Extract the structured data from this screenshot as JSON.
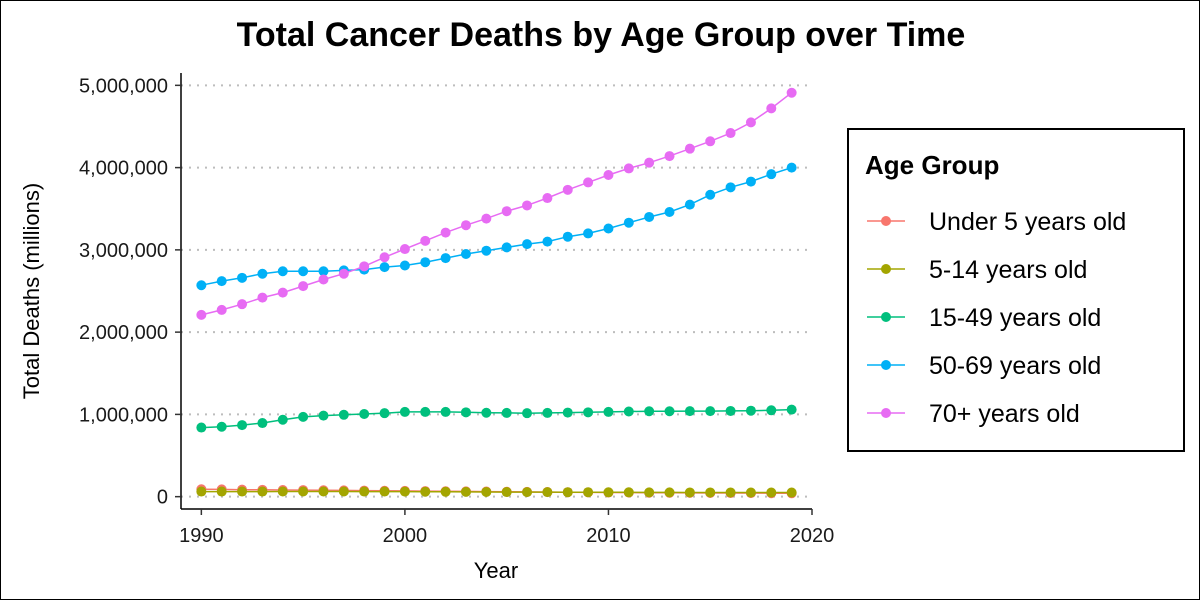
{
  "chart_data": {
    "type": "line",
    "title": "Total Cancer Deaths by Age Group over Time",
    "xlabel": "Year",
    "ylabel": "Total Deaths (millions)",
    "xlim": [
      1989,
      2020
    ],
    "ylim": [
      -150000,
      5150000
    ],
    "x_ticks": [
      1990,
      2000,
      2010,
      2020
    ],
    "x_tick_labels": [
      "1990",
      "2000",
      "2010",
      "2020"
    ],
    "y_ticks": [
      0,
      1000000,
      2000000,
      3000000,
      4000000,
      5000000
    ],
    "y_tick_labels": [
      "0",
      "1,000,000",
      "2,000,000",
      "3,000,000",
      "4,000,000",
      "5,000,000"
    ],
    "grid": "horizontal dotted",
    "legend": {
      "title": "Age Group",
      "position": "right"
    },
    "x": [
      1990,
      1991,
      1992,
      1993,
      1994,
      1995,
      1996,
      1997,
      1998,
      1999,
      2000,
      2001,
      2002,
      2003,
      2004,
      2005,
      2006,
      2007,
      2008,
      2009,
      2010,
      2011,
      2012,
      2013,
      2014,
      2015,
      2016,
      2017,
      2018,
      2019
    ],
    "series": [
      {
        "name": "Under 5 years old",
        "color": "#F8766D",
        "values": [
          90000,
          88000,
          85000,
          83000,
          81000,
          80000,
          78000,
          76000,
          74000,
          72000,
          70000,
          68000,
          66000,
          64000,
          62000,
          60000,
          58000,
          56000,
          54000,
          52000,
          50000,
          49000,
          48000,
          47000,
          46000,
          45000,
          44000,
          43000,
          42000,
          41000
        ]
      },
      {
        "name": "5-14 years old",
        "color": "#A3A500",
        "values": [
          62000,
          62000,
          62000,
          62000,
          63000,
          63000,
          63000,
          63000,
          62000,
          62000,
          61000,
          60000,
          59000,
          58000,
          57000,
          56000,
          55000,
          55000,
          54000,
          54000,
          53000,
          53000,
          52000,
          52000,
          51000,
          51000,
          51000,
          50000,
          50000,
          50000
        ]
      },
      {
        "name": "15-49 years old",
        "color": "#00BF7D",
        "values": [
          840000,
          850000,
          870000,
          895000,
          935000,
          970000,
          985000,
          995000,
          1005000,
          1015000,
          1030000,
          1030000,
          1030000,
          1025000,
          1020000,
          1018000,
          1015000,
          1018000,
          1022000,
          1025000,
          1030000,
          1035000,
          1038000,
          1038000,
          1040000,
          1040000,
          1042000,
          1045000,
          1050000,
          1058000
        ]
      },
      {
        "name": "50-69 years old",
        "color": "#00B0F6",
        "values": [
          2570000,
          2620000,
          2660000,
          2710000,
          2740000,
          2740000,
          2740000,
          2750000,
          2760000,
          2790000,
          2810000,
          2850000,
          2900000,
          2950000,
          2990000,
          3030000,
          3070000,
          3100000,
          3160000,
          3200000,
          3260000,
          3330000,
          3400000,
          3460000,
          3550000,
          3670000,
          3760000,
          3830000,
          3920000,
          4000000
        ]
      },
      {
        "name": "70+ years old",
        "color": "#E76BF3",
        "values": [
          2210000,
          2270000,
          2340000,
          2420000,
          2480000,
          2560000,
          2640000,
          2710000,
          2800000,
          2910000,
          3010000,
          3110000,
          3210000,
          3300000,
          3380000,
          3470000,
          3540000,
          3630000,
          3730000,
          3820000,
          3910000,
          3990000,
          4060000,
          4140000,
          4230000,
          4320000,
          4420000,
          4550000,
          4720000,
          4910000
        ]
      }
    ]
  }
}
